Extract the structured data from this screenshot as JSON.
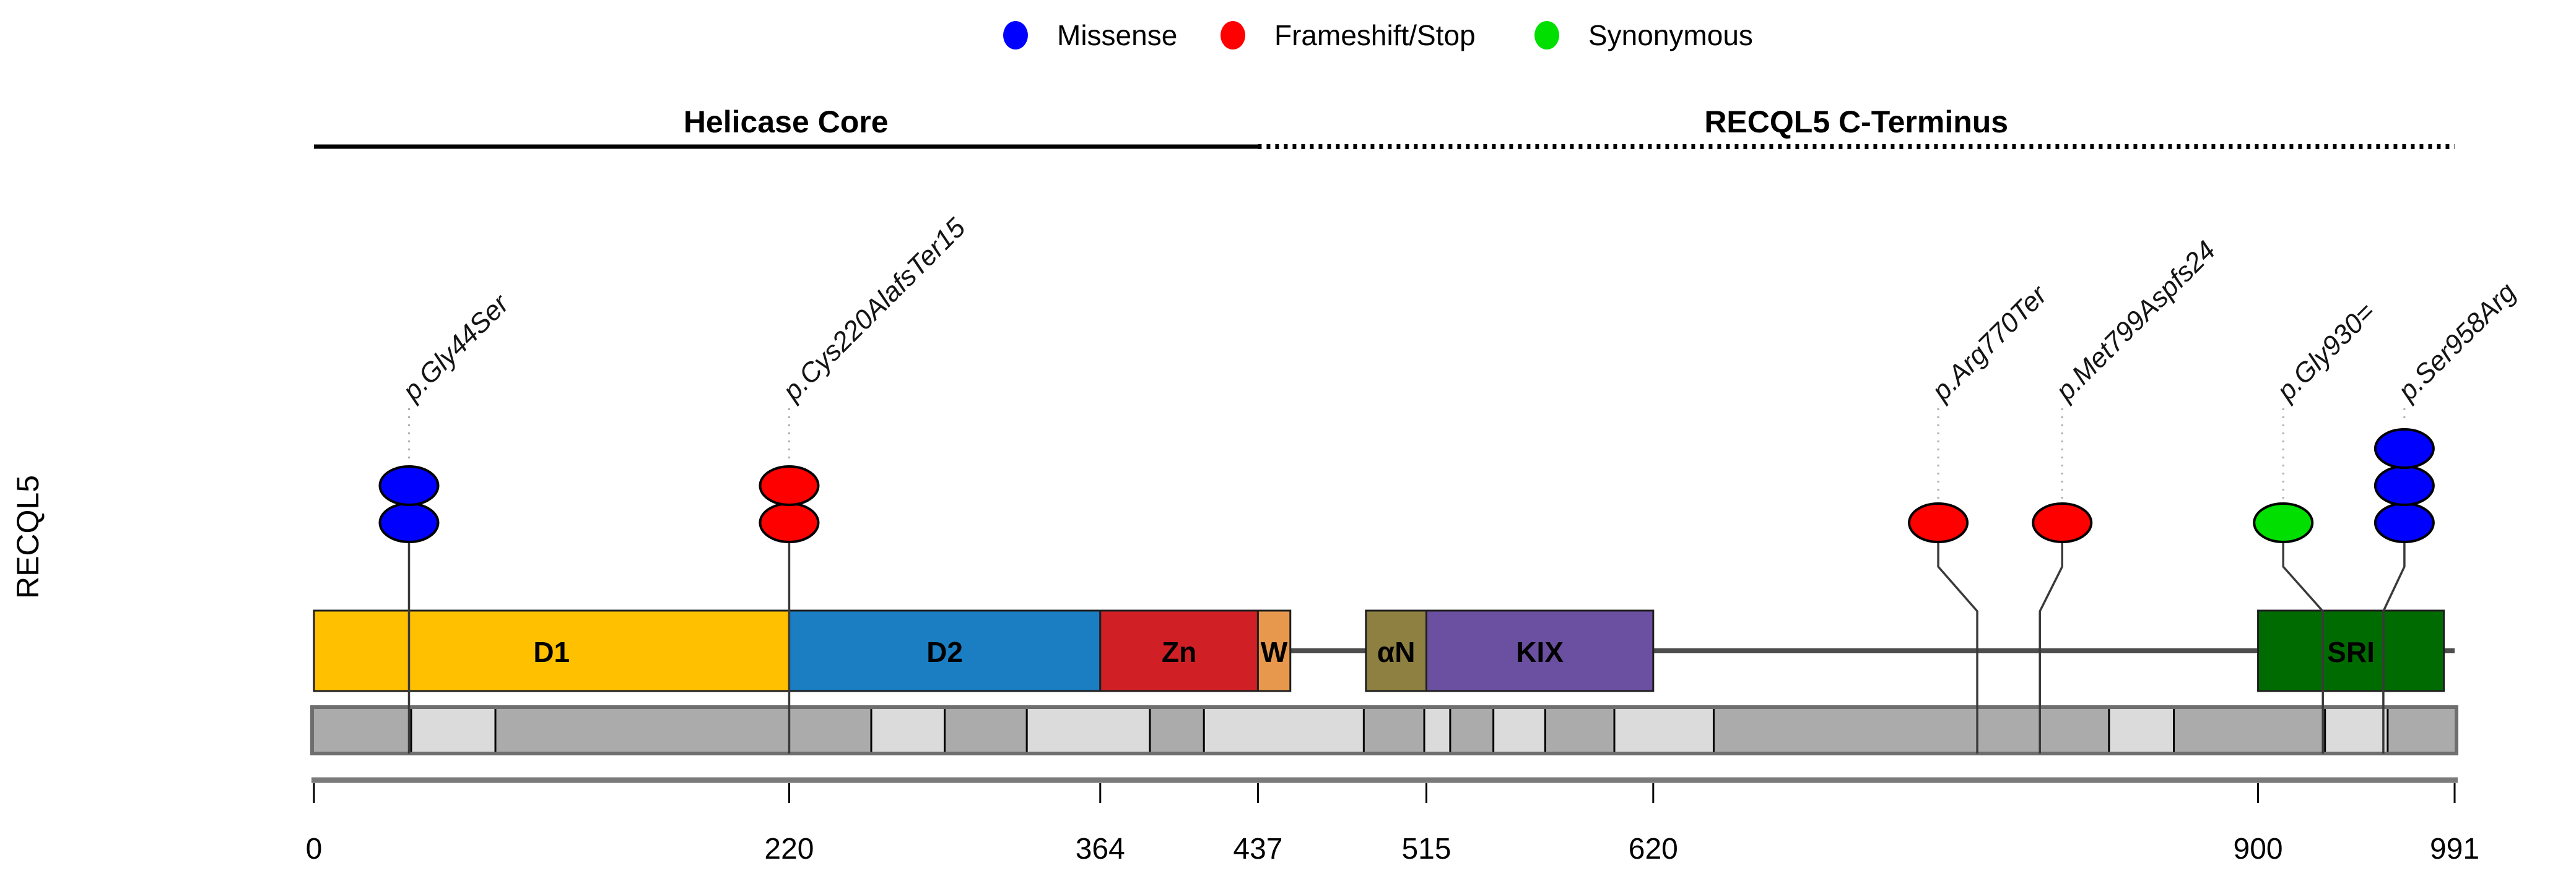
{
  "page": {
    "background": "#FFFFFF"
  },
  "gene_label": "RECQL5",
  "chart_data": {
    "type": "lollipop",
    "chart_kind": "protein-domain-mutation-plot",
    "title": "",
    "gene": "RECQL5",
    "xlabel": "",
    "ylabel": "RECQL5",
    "xlim": [
      0,
      991
    ],
    "x_ticks": [
      0,
      220,
      364,
      437,
      515,
      620,
      900,
      991
    ],
    "protein_length": 991,
    "grid": false,
    "legend_position": "top-center",
    "legend": {
      "entries": [
        {
          "label": "Missense",
          "color": "#0000FF"
        },
        {
          "label": "Frameshift/Stop",
          "color": "#FF0000"
        },
        {
          "label": "Synonymous",
          "color": "#00DF00"
        }
      ]
    },
    "regions": [
      {
        "label": "Helicase Core",
        "start": 0,
        "end": 437,
        "line_style": "solid"
      },
      {
        "label": "RECQL5 C-Terminus",
        "start": 437,
        "end": 991,
        "line_style": "dotted"
      }
    ],
    "domains": [
      {
        "name": "D1",
        "start": 0,
        "end": 220,
        "color": "#FFC000"
      },
      {
        "name": "D2",
        "start": 220,
        "end": 364,
        "color": "#1B7EC2"
      },
      {
        "name": "Zn",
        "start": 364,
        "end": 437,
        "color": "#D02025"
      },
      {
        "name": "W",
        "start": 437,
        "end": 452,
        "color": "#E8984C"
      },
      {
        "name": "αN",
        "start": 487,
        "end": 515,
        "color": "#8E8040"
      },
      {
        "name": "KIX",
        "start": 515,
        "end": 620,
        "color": "#6B4FA0"
      },
      {
        "name": "SRI",
        "start": 900,
        "end": 986,
        "color": "#006B00"
      }
    ],
    "backbone_color": "#4D4D4D",
    "exon_boundaries": [
      0,
      45,
      84,
      258,
      292,
      330,
      387,
      412,
      486,
      514,
      526,
      546,
      570,
      602,
      648,
      831,
      861,
      931,
      960,
      991
    ],
    "exon_colors": {
      "dark": "#ABABAB",
      "light": "#DBDBDB",
      "first": "dark"
    },
    "mutations": [
      {
        "label": "p.Gly44Ser",
        "position": 44,
        "type": "Missense",
        "count": 2,
        "label_dx": 0
      },
      {
        "label": "p.Cys220AlafsTer15",
        "position": 220,
        "type": "Frameshift/Stop",
        "count": 2,
        "label_dx": 0
      },
      {
        "label": "p.Arg770Ter",
        "position": 770,
        "type": "Frameshift/Stop",
        "count": 1,
        "label_dx": -63
      },
      {
        "label": "p.Met799Aspfs24",
        "position": 799,
        "type": "Frameshift/Stop",
        "count": 1,
        "label_dx": 36
      },
      {
        "label": "p.Gly930=",
        "position": 930,
        "type": "Synonymous",
        "count": 1,
        "label_dx": -64
      },
      {
        "label": "p.Ser958Arg",
        "position": 958,
        "type": "Missense",
        "count": 3,
        "label_dx": 34
      }
    ]
  }
}
